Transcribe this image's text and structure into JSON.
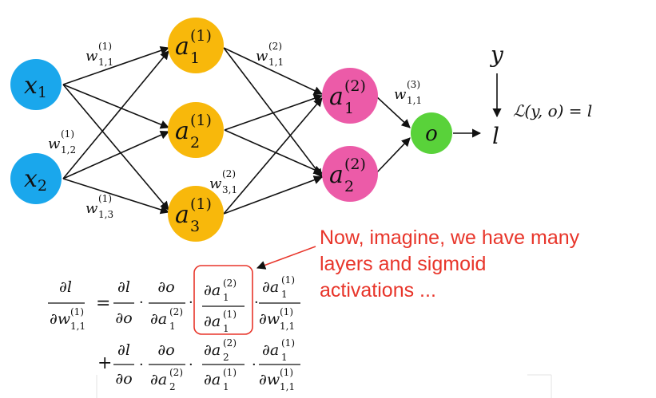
{
  "nodes": {
    "input": [
      {
        "base": "x",
        "sub": "1"
      },
      {
        "base": "x",
        "sub": "2"
      }
    ],
    "hidden1": [
      {
        "base": "a",
        "sup": "(1)",
        "sub": "1"
      },
      {
        "base": "a",
        "sup": "(1)",
        "sub": "2"
      },
      {
        "base": "a",
        "sup": "(1)",
        "sub": "3"
      }
    ],
    "hidden2": [
      {
        "base": "a",
        "sup": "(2)",
        "sub": "1"
      },
      {
        "base": "a",
        "sup": "(2)",
        "sub": "2"
      }
    ],
    "output": {
      "label": "o"
    }
  },
  "weights": {
    "w1_11": {
      "base": "w",
      "sup": "(1)",
      "sub": "1,1"
    },
    "w1_12": {
      "base": "w",
      "sup": "(1)",
      "sub": "1,2"
    },
    "w1_13": {
      "base": "w",
      "sup": "(1)",
      "sub": "1,3"
    },
    "w2_11": {
      "base": "w",
      "sup": "(2)",
      "sub": "1,1"
    },
    "w2_31": {
      "base": "w",
      "sup": "(2)",
      "sub": "3,1"
    },
    "w3_11": {
      "base": "w",
      "sup": "(3)",
      "sub": "1,1"
    }
  },
  "loss": {
    "target": "y",
    "prediction": "l",
    "formula": "ℒ(y, o) = l"
  },
  "annotation": {
    "text": "Now, imagine, we have many\nlayers and sigmoid\nactivations ..."
  },
  "colors": {
    "input": "#1aa7ec",
    "hidden1": "#f8b80b",
    "hidden2": "#ec5ba8",
    "output": "#59d23a",
    "annotation": "#e8352a"
  },
  "equation": {
    "equals": "=",
    "plus": "+",
    "dot": "·",
    "partial": "∂",
    "l": "l",
    "o": "o",
    "w": "w",
    "a": "a",
    "sub_11": "1,1",
    "sub_1": "1",
    "sub_2": "2",
    "sup_1": "(1)",
    "sup_2": "(2)"
  }
}
